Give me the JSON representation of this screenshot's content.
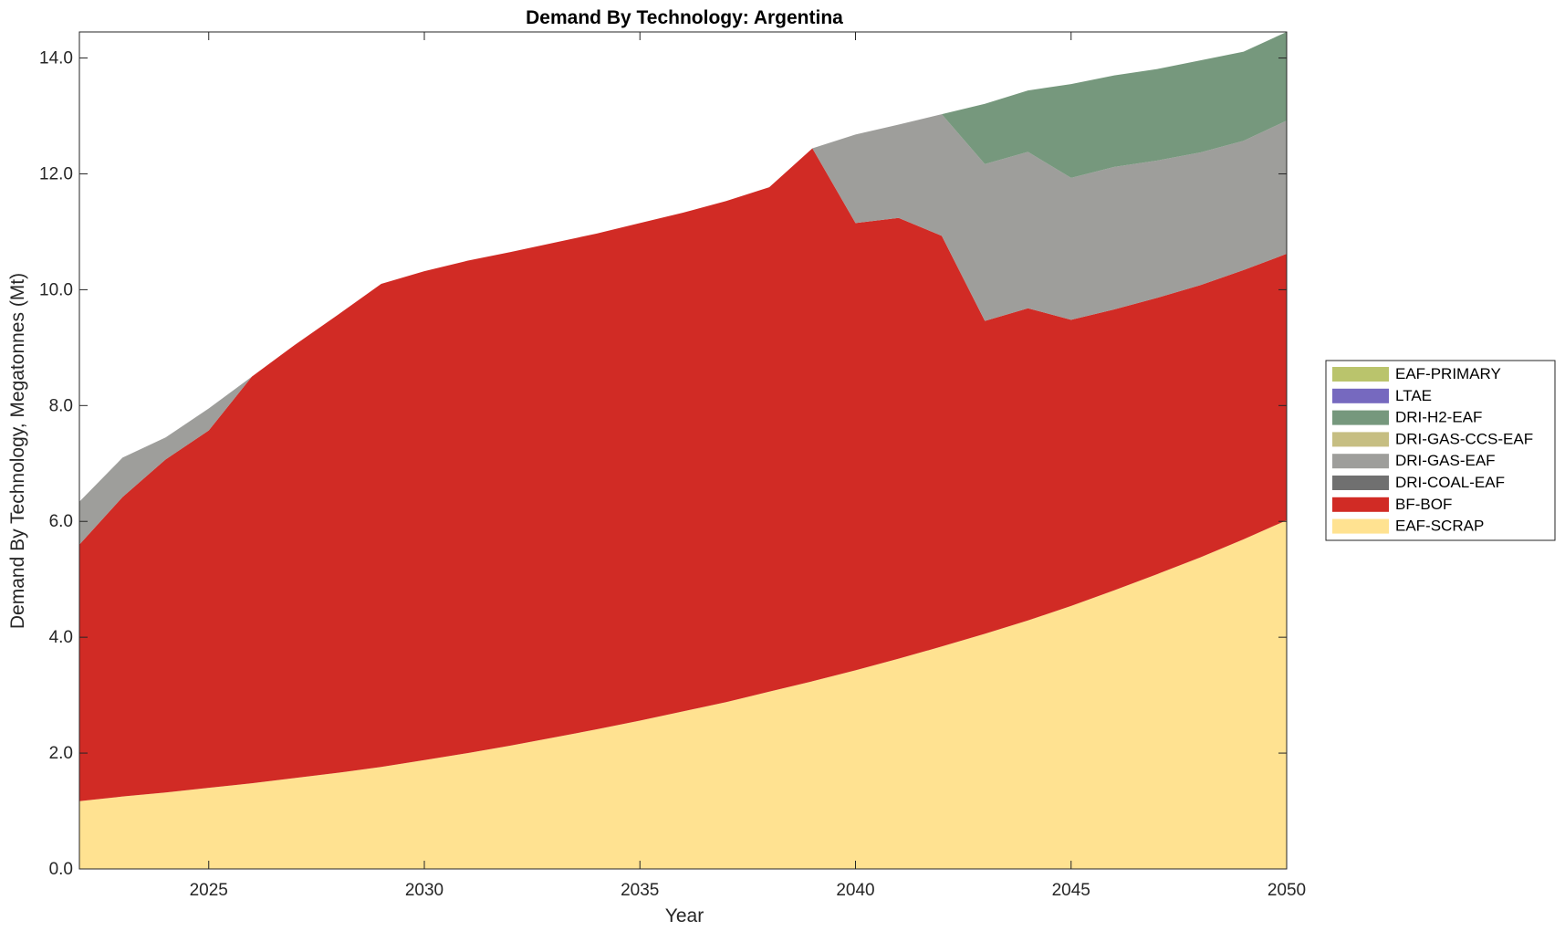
{
  "chart_data": {
    "type": "area",
    "stacked": true,
    "title": "Demand By Technology: Argentina",
    "xlabel": "Year",
    "ylabel": "Demand By Technology, Megatonnes (Mt)",
    "xlim": [
      2022,
      2050
    ],
    "ylim": [
      0,
      14.45
    ],
    "xticks": [
      2025,
      2030,
      2035,
      2040,
      2045,
      2050
    ],
    "xtick_labels": [
      "2025",
      "2030",
      "2035",
      "2040",
      "2045",
      "2050"
    ],
    "yticks": [
      0,
      2,
      4,
      6,
      8,
      10,
      12,
      14
    ],
    "ytick_labels": [
      "0.0",
      "2.0",
      "4.0",
      "6.0",
      "8.0",
      "10.0",
      "12.0",
      "14.0"
    ],
    "grid": false,
    "legend_position": "right",
    "x": [
      2022,
      2023,
      2024,
      2025,
      2026,
      2027,
      2028,
      2029,
      2030,
      2031,
      2032,
      2033,
      2034,
      2035,
      2036,
      2037,
      2038,
      2039,
      2040,
      2041,
      2042,
      2043,
      2044,
      2045,
      2046,
      2047,
      2048,
      2049,
      2050
    ],
    "series": [
      {
        "name": "EAF-SCRAP",
        "color": "#FFE291",
        "values": [
          1.17,
          1.25,
          1.32,
          1.4,
          1.48,
          1.57,
          1.66,
          1.76,
          1.88,
          2.0,
          2.13,
          2.27,
          2.41,
          2.56,
          2.72,
          2.88,
          3.06,
          3.24,
          3.43,
          3.63,
          3.84,
          4.06,
          4.29,
          4.54,
          4.81,
          5.09,
          5.38,
          5.69,
          6.02
        ]
      },
      {
        "name": "BF-BOF",
        "color": "#D12B25",
        "values": [
          4.43,
          5.17,
          5.75,
          6.17,
          7.02,
          7.48,
          7.91,
          8.34,
          8.44,
          8.5,
          8.52,
          8.54,
          8.56,
          8.59,
          8.61,
          8.65,
          8.71,
          9.2,
          7.72,
          7.61,
          7.09,
          5.4,
          5.39,
          4.94,
          4.85,
          4.77,
          4.7,
          4.65,
          4.6
        ]
      },
      {
        "name": "DRI-COAL-EAF",
        "color": "#707070",
        "values": [
          0,
          0,
          0,
          0,
          0,
          0,
          0,
          0,
          0,
          0,
          0,
          0,
          0,
          0,
          0,
          0,
          0,
          0,
          0,
          0,
          0,
          0,
          0,
          0,
          0,
          0,
          0,
          0,
          0
        ]
      },
      {
        "name": "DRI-GAS-EAF",
        "color": "#9E9E9B",
        "values": [
          0.74,
          0.68,
          0.38,
          0.38,
          0,
          0,
          0,
          0,
          0,
          0,
          0,
          0,
          0,
          0,
          0,
          0,
          0,
          0,
          1.53,
          1.61,
          2.1,
          2.71,
          2.7,
          2.45,
          2.46,
          2.37,
          2.29,
          2.23,
          2.3
        ]
      },
      {
        "name": "DRI-GAS-CCS-EAF",
        "color": "#C6BE82",
        "values": [
          0,
          0,
          0,
          0,
          0,
          0,
          0,
          0,
          0,
          0,
          0,
          0,
          0,
          0,
          0,
          0,
          0,
          0,
          0,
          0,
          0,
          0,
          0,
          0,
          0,
          0,
          0,
          0,
          0
        ]
      },
      {
        "name": "DRI-H2-EAF",
        "color": "#76987D",
        "values": [
          0,
          0,
          0,
          0,
          0,
          0,
          0,
          0,
          0,
          0,
          0,
          0,
          0,
          0,
          0,
          0,
          0,
          0,
          0,
          0,
          0,
          1.04,
          1.06,
          1.62,
          1.58,
          1.58,
          1.59,
          1.54,
          1.53
        ]
      },
      {
        "name": "LTAE",
        "color": "#7669BF",
        "values": [
          0,
          0,
          0,
          0,
          0,
          0,
          0,
          0,
          0,
          0,
          0,
          0,
          0,
          0,
          0,
          0,
          0,
          0,
          0,
          0,
          0,
          0,
          0,
          0,
          0,
          0,
          0,
          0,
          0
        ]
      },
      {
        "name": "EAF-PRIMARY",
        "color": "#BAC46C",
        "values": [
          0,
          0,
          0,
          0,
          0,
          0,
          0,
          0,
          0,
          0,
          0,
          0,
          0,
          0,
          0,
          0,
          0,
          0,
          0,
          0,
          0,
          0,
          0,
          0,
          0,
          0,
          0,
          0,
          0
        ]
      }
    ],
    "legend_order": [
      "EAF-PRIMARY",
      "LTAE",
      "DRI-H2-EAF",
      "DRI-GAS-CCS-EAF",
      "DRI-GAS-EAF",
      "DRI-COAL-EAF",
      "BF-BOF",
      "EAF-SCRAP"
    ]
  }
}
